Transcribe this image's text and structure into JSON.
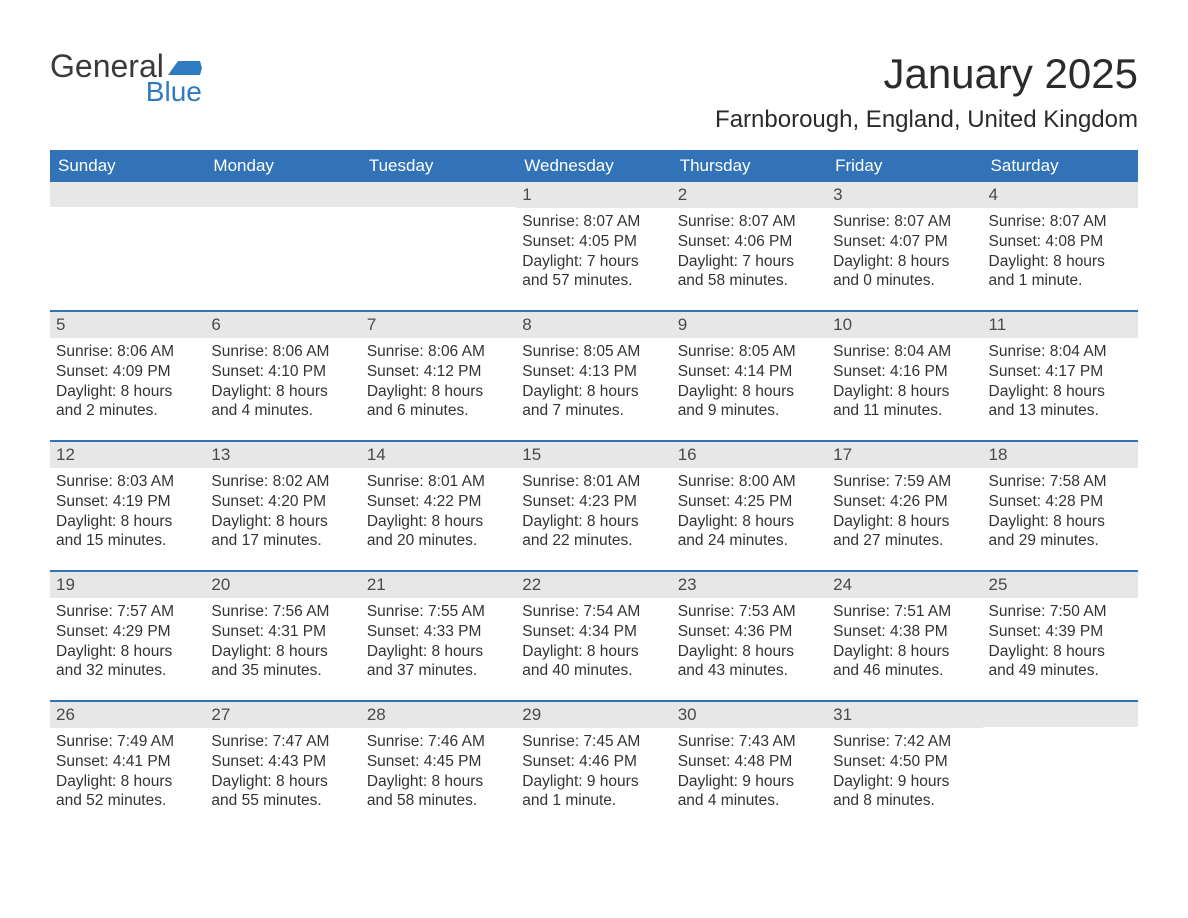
{
  "logo": {
    "text_general": "General",
    "text_blue": "Blue",
    "flag_color": "#2f7bbf"
  },
  "title": "January 2025",
  "location": "Farnborough, England, United Kingdom",
  "colors": {
    "header_bg": "#3173b6",
    "header_text": "#ffffff",
    "daynum_bg": "#e7e7e7",
    "body_text": "#333333",
    "divider": "#3173b6"
  },
  "days_of_week": [
    "Sunday",
    "Monday",
    "Tuesday",
    "Wednesday",
    "Thursday",
    "Friday",
    "Saturday"
  ],
  "weeks": [
    [
      null,
      null,
      null,
      {
        "n": "1",
        "sunrise": "8:07 AM",
        "sunset": "4:05 PM",
        "daylight": "7 hours and 57 minutes."
      },
      {
        "n": "2",
        "sunrise": "8:07 AM",
        "sunset": "4:06 PM",
        "daylight": "7 hours and 58 minutes."
      },
      {
        "n": "3",
        "sunrise": "8:07 AM",
        "sunset": "4:07 PM",
        "daylight": "8 hours and 0 minutes."
      },
      {
        "n": "4",
        "sunrise": "8:07 AM",
        "sunset": "4:08 PM",
        "daylight": "8 hours and 1 minute."
      }
    ],
    [
      {
        "n": "5",
        "sunrise": "8:06 AM",
        "sunset": "4:09 PM",
        "daylight": "8 hours and 2 minutes."
      },
      {
        "n": "6",
        "sunrise": "8:06 AM",
        "sunset": "4:10 PM",
        "daylight": "8 hours and 4 minutes."
      },
      {
        "n": "7",
        "sunrise": "8:06 AM",
        "sunset": "4:12 PM",
        "daylight": "8 hours and 6 minutes."
      },
      {
        "n": "8",
        "sunrise": "8:05 AM",
        "sunset": "4:13 PM",
        "daylight": "8 hours and 7 minutes."
      },
      {
        "n": "9",
        "sunrise": "8:05 AM",
        "sunset": "4:14 PM",
        "daylight": "8 hours and 9 minutes."
      },
      {
        "n": "10",
        "sunrise": "8:04 AM",
        "sunset": "4:16 PM",
        "daylight": "8 hours and 11 minutes."
      },
      {
        "n": "11",
        "sunrise": "8:04 AM",
        "sunset": "4:17 PM",
        "daylight": "8 hours and 13 minutes."
      }
    ],
    [
      {
        "n": "12",
        "sunrise": "8:03 AM",
        "sunset": "4:19 PM",
        "daylight": "8 hours and 15 minutes."
      },
      {
        "n": "13",
        "sunrise": "8:02 AM",
        "sunset": "4:20 PM",
        "daylight": "8 hours and 17 minutes."
      },
      {
        "n": "14",
        "sunrise": "8:01 AM",
        "sunset": "4:22 PM",
        "daylight": "8 hours and 20 minutes."
      },
      {
        "n": "15",
        "sunrise": "8:01 AM",
        "sunset": "4:23 PM",
        "daylight": "8 hours and 22 minutes."
      },
      {
        "n": "16",
        "sunrise": "8:00 AM",
        "sunset": "4:25 PM",
        "daylight": "8 hours and 24 minutes."
      },
      {
        "n": "17",
        "sunrise": "7:59 AM",
        "sunset": "4:26 PM",
        "daylight": "8 hours and 27 minutes."
      },
      {
        "n": "18",
        "sunrise": "7:58 AM",
        "sunset": "4:28 PM",
        "daylight": "8 hours and 29 minutes."
      }
    ],
    [
      {
        "n": "19",
        "sunrise": "7:57 AM",
        "sunset": "4:29 PM",
        "daylight": "8 hours and 32 minutes."
      },
      {
        "n": "20",
        "sunrise": "7:56 AM",
        "sunset": "4:31 PM",
        "daylight": "8 hours and 35 minutes."
      },
      {
        "n": "21",
        "sunrise": "7:55 AM",
        "sunset": "4:33 PM",
        "daylight": "8 hours and 37 minutes."
      },
      {
        "n": "22",
        "sunrise": "7:54 AM",
        "sunset": "4:34 PM",
        "daylight": "8 hours and 40 minutes."
      },
      {
        "n": "23",
        "sunrise": "7:53 AM",
        "sunset": "4:36 PM",
        "daylight": "8 hours and 43 minutes."
      },
      {
        "n": "24",
        "sunrise": "7:51 AM",
        "sunset": "4:38 PM",
        "daylight": "8 hours and 46 minutes."
      },
      {
        "n": "25",
        "sunrise": "7:50 AM",
        "sunset": "4:39 PM",
        "daylight": "8 hours and 49 minutes."
      }
    ],
    [
      {
        "n": "26",
        "sunrise": "7:49 AM",
        "sunset": "4:41 PM",
        "daylight": "8 hours and 52 minutes."
      },
      {
        "n": "27",
        "sunrise": "7:47 AM",
        "sunset": "4:43 PM",
        "daylight": "8 hours and 55 minutes."
      },
      {
        "n": "28",
        "sunrise": "7:46 AM",
        "sunset": "4:45 PM",
        "daylight": "8 hours and 58 minutes."
      },
      {
        "n": "29",
        "sunrise": "7:45 AM",
        "sunset": "4:46 PM",
        "daylight": "9 hours and 1 minute."
      },
      {
        "n": "30",
        "sunrise": "7:43 AM",
        "sunset": "4:48 PM",
        "daylight": "9 hours and 4 minutes."
      },
      {
        "n": "31",
        "sunrise": "7:42 AM",
        "sunset": "4:50 PM",
        "daylight": "9 hours and 8 minutes."
      },
      null
    ]
  ],
  "labels": {
    "sunrise": "Sunrise: ",
    "sunset": "Sunset: ",
    "daylight": "Daylight: "
  }
}
